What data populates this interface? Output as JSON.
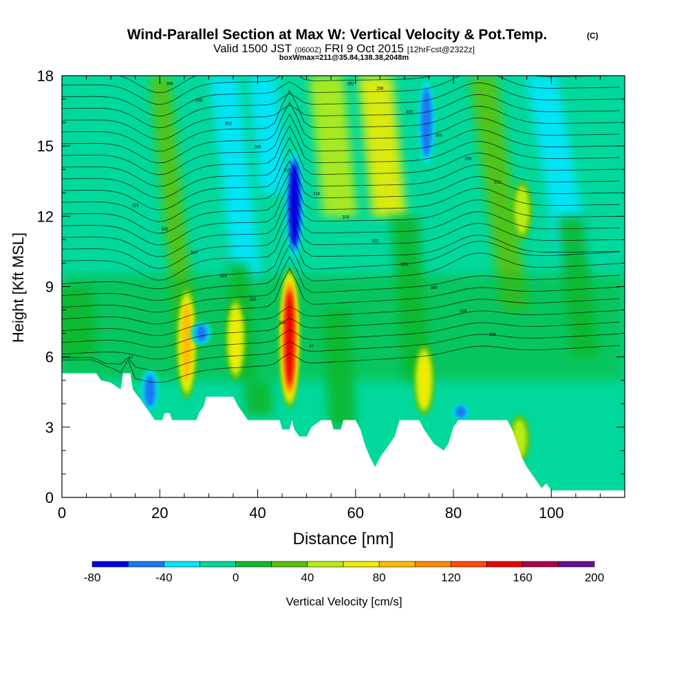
{
  "chart_data": {
    "type": "heatmap",
    "title": "Wind-Parallel Section at Max W: Vertical Velocity & Pot.Temp.",
    "title_mark": "(C)",
    "subtitle_parts": [
      "Valid 1500 JST",
      "(0600Z)",
      "FRI 9 Oct 2015",
      "[12hrFcst@2322z]"
    ],
    "subtitle2": "boxWmax=211@35.84,138.38,2048m",
    "xlabel": "Distance [nm]",
    "ylabel": "Height [Kft MSL]",
    "xlim": [
      0,
      115
    ],
    "ylim": [
      0,
      18
    ],
    "xticks": [
      0,
      20,
      40,
      60,
      80,
      100
    ],
    "yticks": [
      0,
      3,
      6,
      9,
      12,
      15,
      18
    ],
    "grid": false,
    "colorbar": {
      "label": "Vertical Velocity [cm/s]",
      "bounds": [
        -80,
        -60,
        -40,
        -20,
        0,
        20,
        40,
        60,
        80,
        100,
        120,
        140,
        160,
        180,
        200
      ],
      "tick_labels": [
        "-80",
        "-40",
        "0",
        "40",
        "80",
        "120",
        "160",
        "200"
      ],
      "colors": [
        "#0000ee",
        "#1a78f0",
        "#00e6ff",
        "#00d89c",
        "#11b82e",
        "#58c20a",
        "#b8ec18",
        "#f0ec00",
        "#ffbe00",
        "#ff8c00",
        "#ff4a00",
        "#ee0000",
        "#aa0050",
        "#6a108c"
      ]
    },
    "contour_labels": [
      "4?",
      "4?",
      "338",
      "336",
      "334",
      "332",
      "330",
      "328",
      "326",
      "324",
      "322",
      "320",
      "318",
      "316",
      "314",
      "312",
      "310",
      "308",
      "306",
      "304",
      "302",
      "300",
      "298",
      "296",
      "294",
      "292"
    ],
    "updraft_cores": [
      {
        "distance": 46.5,
        "height_bottom": 3.8,
        "height_top": 9.8,
        "max_w": 160
      },
      {
        "distance": 25.5,
        "height_bottom": 4.2,
        "height_top": 9.0,
        "max_w": 90
      },
      {
        "distance": 35.5,
        "height_bottom": 5.0,
        "height_top": 8.5,
        "max_w": 80
      },
      {
        "distance": 74.0,
        "height_bottom": 3.5,
        "height_top": 6.5,
        "max_w": 75
      },
      {
        "distance": 94.0,
        "height_bottom": 11.0,
        "height_top": 13.5,
        "max_w": 50
      },
      {
        "distance": 93.5,
        "height_bottom": 1.5,
        "height_top": 3.5,
        "max_w": 60
      }
    ],
    "downdraft_cores": [
      {
        "distance": 47.5,
        "height_bottom": 10.0,
        "height_top": 15.0,
        "min_w": -80
      },
      {
        "distance": 18.0,
        "height_bottom": 3.6,
        "height_top": 5.5,
        "min_w": -60
      },
      {
        "distance": 74.5,
        "height_bottom": 14.0,
        "height_top": 18.0,
        "min_w": -60
      },
      {
        "distance": 28.5,
        "height_bottom": 6.5,
        "height_top": 7.5,
        "min_w": -60
      },
      {
        "distance": 81.5,
        "height_bottom": 3.3,
        "height_top": 4.0,
        "min_w": -60
      }
    ],
    "terrain": [
      {
        "distance": 0,
        "height": 5.3
      },
      {
        "distance": 7,
        "height": 5.3
      },
      {
        "distance": 8,
        "height": 5.0
      },
      {
        "distance": 10,
        "height": 4.9
      },
      {
        "distance": 12,
        "height": 4.6
      },
      {
        "distance": 12.5,
        "height": 5.3
      },
      {
        "distance": 14,
        "height": 5.3
      },
      {
        "distance": 14.5,
        "height": 4.6
      },
      {
        "distance": 16,
        "height": 4.2
      },
      {
        "distance": 17,
        "height": 3.9
      },
      {
        "distance": 18,
        "height": 3.6
      },
      {
        "distance": 19,
        "height": 3.3
      },
      {
        "distance": 20.5,
        "height": 3.3
      },
      {
        "distance": 21,
        "height": 3.6
      },
      {
        "distance": 22,
        "height": 3.6
      },
      {
        "distance": 22.5,
        "height": 3.3
      },
      {
        "distance": 27.5,
        "height": 3.3
      },
      {
        "distance": 28,
        "height": 3.6
      },
      {
        "distance": 29,
        "height": 3.9
      },
      {
        "distance": 29.5,
        "height": 4.3
      },
      {
        "distance": 35,
        "height": 4.3
      },
      {
        "distance": 36,
        "height": 3.9
      },
      {
        "distance": 37,
        "height": 3.6
      },
      {
        "distance": 38,
        "height": 3.3
      },
      {
        "distance": 44.5,
        "height": 3.3
      },
      {
        "distance": 45,
        "height": 2.9
      },
      {
        "distance": 46.5,
        "height": 2.9
      },
      {
        "distance": 47,
        "height": 3.3
      },
      {
        "distance": 47.5,
        "height": 2.9
      },
      {
        "distance": 48.5,
        "height": 2.6
      },
      {
        "distance": 50,
        "height": 2.6
      },
      {
        "distance": 51,
        "height": 3.0
      },
      {
        "distance": 53,
        "height": 3.3
      },
      {
        "distance": 55,
        "height": 3.3
      },
      {
        "distance": 55.5,
        "height": 2.9
      },
      {
        "distance": 57,
        "height": 2.9
      },
      {
        "distance": 57.5,
        "height": 3.3
      },
      {
        "distance": 60,
        "height": 3.3
      },
      {
        "distance": 61,
        "height": 2.9
      },
      {
        "distance": 62,
        "height": 2.2
      },
      {
        "distance": 63,
        "height": 1.7
      },
      {
        "distance": 64,
        "height": 1.3
      },
      {
        "distance": 65,
        "height": 1.7
      },
      {
        "distance": 66,
        "height": 2.0
      },
      {
        "distance": 67,
        "height": 2.3
      },
      {
        "distance": 68,
        "height": 2.6
      },
      {
        "distance": 69,
        "height": 3.3
      },
      {
        "distance": 73,
        "height": 3.3
      },
      {
        "distance": 74,
        "height": 2.9
      },
      {
        "distance": 75,
        "height": 2.6
      },
      {
        "distance": 76,
        "height": 2.3
      },
      {
        "distance": 78,
        "height": 2.0
      },
      {
        "distance": 79,
        "height": 2.3
      },
      {
        "distance": 80,
        "height": 3.0
      },
      {
        "distance": 81,
        "height": 3.3
      },
      {
        "distance": 91,
        "height": 3.3
      },
      {
        "distance": 92,
        "height": 2.9
      },
      {
        "distance": 93,
        "height": 2.3
      },
      {
        "distance": 94,
        "height": 1.7
      },
      {
        "distance": 95,
        "height": 1.3
      },
      {
        "distance": 96,
        "height": 1.0
      },
      {
        "distance": 97,
        "height": 0.7
      },
      {
        "distance": 98,
        "height": 0.4
      },
      {
        "distance": 99,
        "height": 0.6
      },
      {
        "distance": 100,
        "height": 0.3
      },
      {
        "distance": 115,
        "height": 0.3
      }
    ]
  }
}
